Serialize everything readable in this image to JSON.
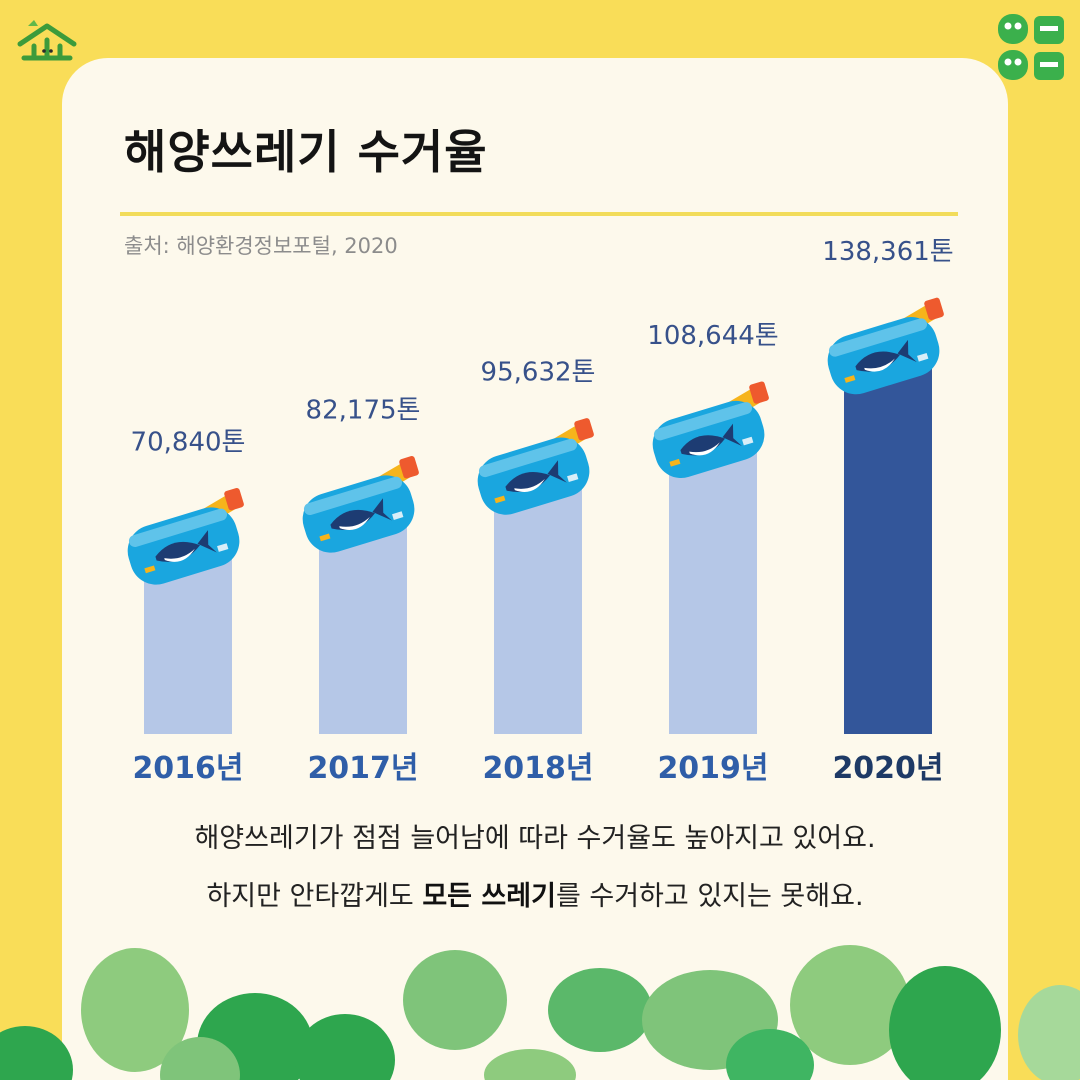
{
  "title": "해양쓰레기 수거율",
  "source": "출처: 해양환경정보포털, 2020",
  "caption": {
    "line1": "해양쓰레기가 점점 늘어남에 따라 수거율도 높아지고 있어요.",
    "line2_pre": "하지만 안타깝게도 ",
    "line2_bold": "모든 쓰레기",
    "line2_post": "를 수거하고 있지는 못해요."
  },
  "logos": {
    "left": "brand-logo",
    "right": "eco-face-logo"
  },
  "colors": {
    "background": "#f9dd58",
    "card": "#fdf9ec",
    "bar": "#b5c7e7",
    "bar_highlight": "#33569a",
    "label": "#2f5ea8",
    "label_highlight": "#1e3a66",
    "bottle_body": "#1aa6df",
    "bottle_neck": "#f6b41b",
    "bottle_cap": "#ee5a2e",
    "bush_light": "#8ecb7e",
    "bush_dark": "#2ea64e"
  },
  "chart_data": {
    "type": "bar",
    "categories": [
      "2016년",
      "2017년",
      "2018년",
      "2019년",
      "2020년"
    ],
    "values": [
      70840,
      82175,
      95632,
      108644,
      138361
    ],
    "value_labels": [
      "70,840톤",
      "82,175톤",
      "95,632톤",
      "108,644톤",
      "138,361톤"
    ],
    "highlight_index": 4,
    "ylim": [
      0,
      138361
    ],
    "title": "해양쓰레기 수거율",
    "xlabel": "",
    "ylabel": ""
  }
}
